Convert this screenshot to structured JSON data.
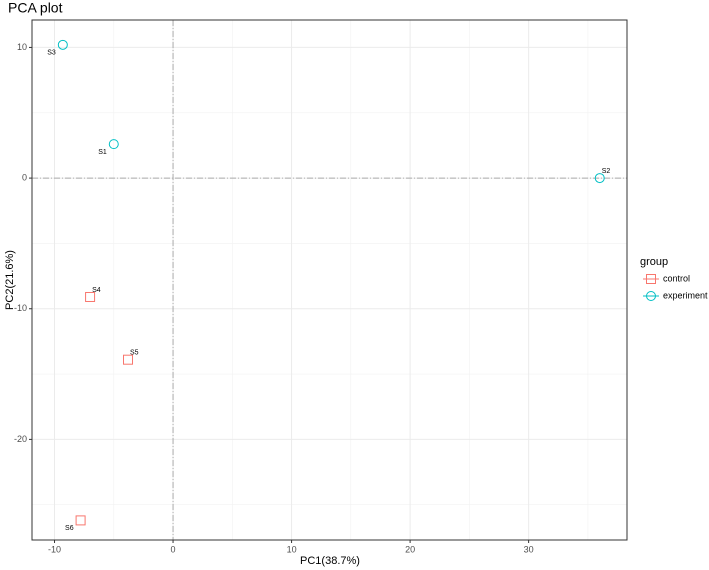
{
  "chart_data": {
    "type": "scatter",
    "title": "PCA plot",
    "x_label": "PC1(38.7%)",
    "y_label": "PC2(21.6%)",
    "xlim": [
      -11.9,
      38.3
    ],
    "ylim": [
      -27.7,
      12.1
    ],
    "xticks": [
      -10,
      0,
      10,
      20,
      30
    ],
    "yticks": [
      -20,
      -10,
      0,
      10
    ],
    "x_minor_ticks": [
      -5,
      5,
      15,
      25,
      35
    ],
    "y_minor_ticks": [
      -25,
      -15,
      -5,
      5
    ],
    "vline": 0,
    "hline": 0,
    "grid": true,
    "legend_title": "group",
    "legend_position": "right",
    "series": [
      {
        "name": "control",
        "color": "#F8766D",
        "marker": "square",
        "x": [
          -7,
          -3.8,
          -7.8
        ],
        "y": [
          -9.1,
          -13.9,
          -26.2
        ],
        "labels": [
          "S4",
          "S5",
          "S6"
        ]
      },
      {
        "name": "experiment",
        "color": "#00BFC4",
        "marker": "circle",
        "x": [
          -5,
          36,
          -9.3
        ],
        "y": [
          2.6,
          0,
          10.2
        ],
        "labels": [
          "S1",
          "S2",
          "S3"
        ]
      }
    ]
  }
}
